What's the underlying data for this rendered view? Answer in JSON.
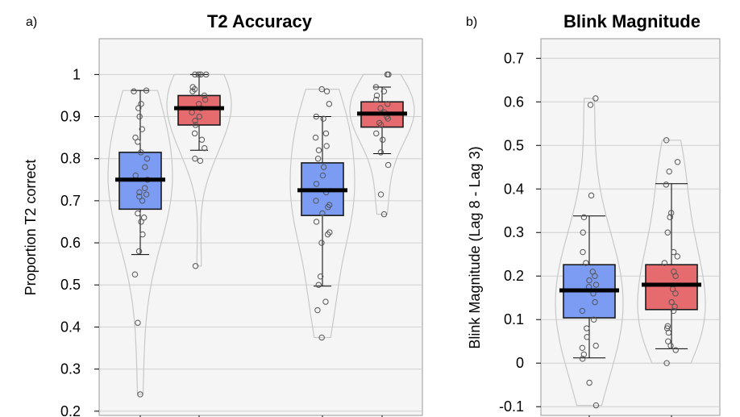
{
  "panels": [
    {
      "panel_label": "a)",
      "title": "T2 Accuracy",
      "ylabel": "Proportion T2 correct"
    },
    {
      "panel_label": "b)",
      "title": "Blink Magnitude",
      "ylabel": "Blink Magnitude (Lag 8 - Lag 3)"
    }
  ],
  "colors": {
    "blue": "#7b9cf2",
    "red": "#e56b6f",
    "panel_bg": "#f5f5f5",
    "grid": "#d0d0d0",
    "violin": "#c8c8c8"
  },
  "chart_data": [
    {
      "type": "box",
      "title": "T2 Accuracy",
      "ylabel": "Proportion T2 correct",
      "ylim": [
        0.19,
        1.085
      ],
      "y_ticks": [
        "0.2",
        "0.3",
        "0.4",
        "0.5",
        "0.6",
        "0.7",
        "0.8",
        "0.9",
        "1"
      ],
      "grid": true,
      "groups": [
        {
          "color": "blue",
          "q1": 0.68,
          "median": 0.75,
          "q3": 0.815,
          "whisker_low": 0.572,
          "whisker_high": 0.962,
          "points": [
            0.962,
            0.96,
            0.93,
            0.92,
            0.9,
            0.87,
            0.85,
            0.84,
            0.815,
            0.8,
            0.78,
            0.76,
            0.75,
            0.73,
            0.72,
            0.715,
            0.71,
            0.7,
            0.67,
            0.66,
            0.65,
            0.62,
            0.58,
            0.525,
            0.41,
            0.24
          ]
        },
        {
          "color": "red",
          "q1": 0.88,
          "median": 0.92,
          "q3": 0.95,
          "whisker_low": 0.82,
          "whisker_high": 1.0,
          "points": [
            1.0,
            1.0,
            1.0,
            1.0,
            0.97,
            0.965,
            0.96,
            0.95,
            0.94,
            0.93,
            0.92,
            0.91,
            0.9,
            0.89,
            0.88,
            0.86,
            0.845,
            0.825,
            0.8,
            0.795,
            0.545
          ]
        },
        {
          "color": "blue",
          "q1": 0.665,
          "median": 0.725,
          "q3": 0.79,
          "whisker_low": 0.497,
          "whisker_high": 0.9,
          "points": [
            0.965,
            0.96,
            0.93,
            0.9,
            0.895,
            0.86,
            0.85,
            0.83,
            0.82,
            0.8,
            0.78,
            0.76,
            0.74,
            0.72,
            0.7,
            0.69,
            0.685,
            0.67,
            0.65,
            0.625,
            0.62,
            0.6,
            0.52,
            0.5,
            0.46,
            0.44,
            0.375
          ]
        },
        {
          "color": "red",
          "q1": 0.875,
          "median": 0.907,
          "q3": 0.935,
          "whisker_low": 0.812,
          "whisker_high": 0.97,
          "points": [
            1.0,
            1.0,
            0.97,
            0.96,
            0.95,
            0.94,
            0.93,
            0.92,
            0.91,
            0.9,
            0.895,
            0.885,
            0.88,
            0.86,
            0.845,
            0.815,
            0.785,
            0.715,
            0.668
          ]
        }
      ]
    },
    {
      "type": "box",
      "title": "Blink Magnitude",
      "ylabel": "Blink Magnitude (Lag 8 - Lag 3)",
      "ylim": [
        -0.12,
        0.745
      ],
      "y_ticks": [
        "-0.1",
        "0",
        "0.1",
        "0.2",
        "0.3",
        "0.4",
        "0.5",
        "0.6",
        "0.7"
      ],
      "grid": true,
      "groups": [
        {
          "color": "blue",
          "q1": 0.104,
          "median": 0.167,
          "q3": 0.226,
          "whisker_low": 0.012,
          "whisker_high": 0.338,
          "points": [
            0.608,
            0.593,
            0.385,
            0.335,
            0.3,
            0.255,
            0.23,
            0.21,
            0.2,
            0.19,
            0.18,
            0.175,
            0.16,
            0.14,
            0.12,
            0.1,
            0.08,
            0.06,
            0.04,
            0.035,
            0.02,
            0.01,
            -0.045,
            -0.097
          ]
        },
        {
          "color": "red",
          "q1": 0.123,
          "median": 0.18,
          "q3": 0.226,
          "whisker_low": 0.033,
          "whisker_high": 0.412,
          "points": [
            0.512,
            0.462,
            0.44,
            0.41,
            0.345,
            0.335,
            0.3,
            0.255,
            0.245,
            0.23,
            0.21,
            0.2,
            0.17,
            0.16,
            0.14,
            0.13,
            0.12,
            0.085,
            0.08,
            0.07,
            0.05,
            0.04,
            0.03,
            0.0
          ]
        }
      ]
    }
  ]
}
